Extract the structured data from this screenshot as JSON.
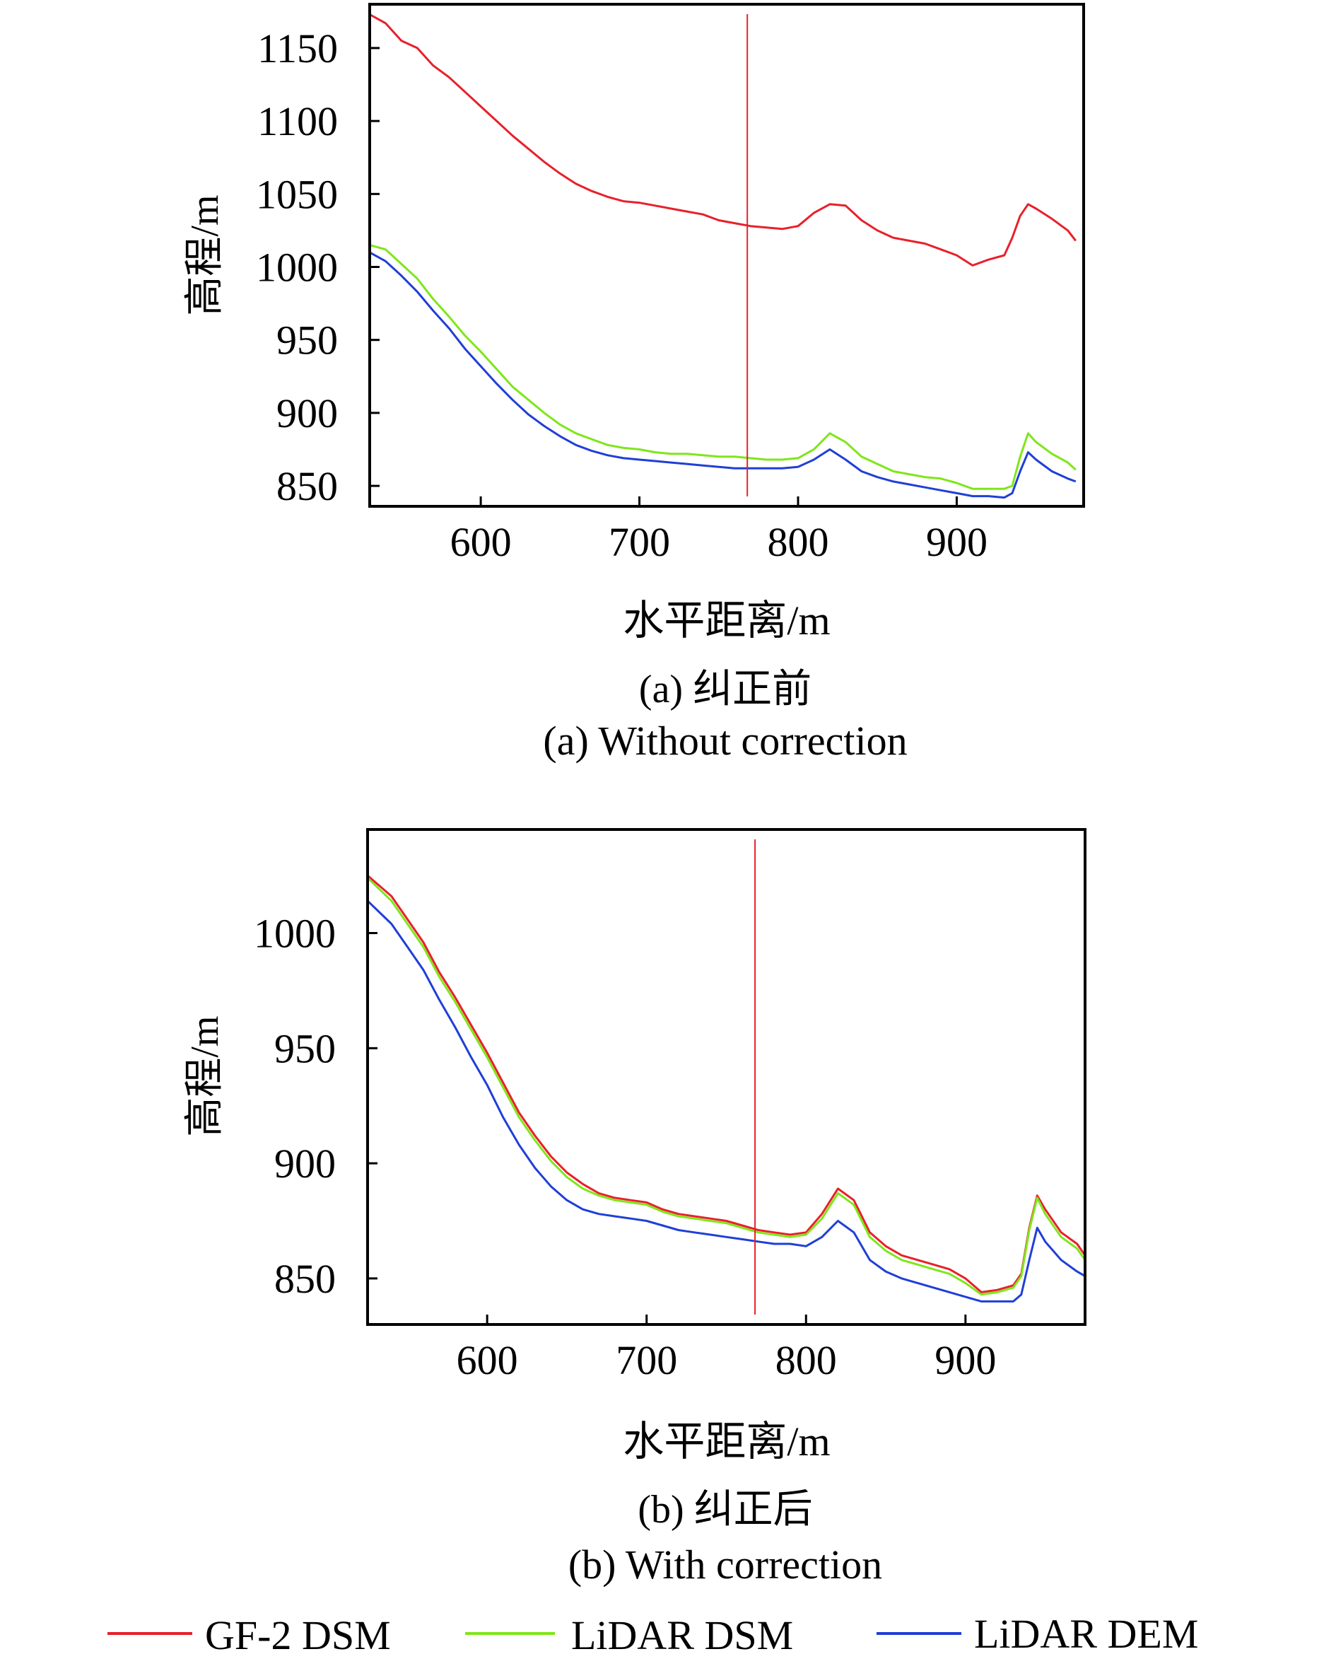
{
  "legend": {
    "placement": "bottom",
    "entries": [
      {
        "label": "GF-2 DSM",
        "color": "#e8202a"
      },
      {
        "label": "LiDAR DSM",
        "color": "#7fe61a"
      },
      {
        "label": "LiDAR DEM",
        "color": "#1f3fd6"
      }
    ]
  },
  "chart_data": [
    {
      "type": "line",
      "caption_cn": "(a) 纠正前",
      "caption_en": "(a) Without correction",
      "xlabel": "水平距离/m",
      "ylabel": "高程/m",
      "xlim": [
        530,
        980
      ],
      "ylim": [
        836,
        1180
      ],
      "xticks": [
        600,
        700,
        800,
        900
      ],
      "yticks": [
        850,
        900,
        950,
        1000,
        1050,
        1100,
        1150
      ],
      "grid": false,
      "marker_line": {
        "x": 768,
        "color": "#e8202a"
      },
      "x": [
        530,
        540,
        550,
        560,
        570,
        580,
        590,
        600,
        610,
        620,
        630,
        640,
        650,
        660,
        670,
        680,
        690,
        700,
        710,
        720,
        730,
        740,
        750,
        760,
        770,
        780,
        790,
        800,
        810,
        820,
        830,
        840,
        850,
        860,
        870,
        880,
        890,
        900,
        910,
        920,
        930,
        935,
        940,
        945,
        950,
        960,
        970,
        975
      ],
      "series": [
        {
          "name": "GF-2 DSM",
          "color": "#e8202a",
          "values": [
            1173,
            1167,
            1155,
            1150,
            1138,
            1130,
            1120,
            1110,
            1100,
            1090,
            1081,
            1072,
            1064,
            1057,
            1052,
            1048,
            1045,
            1044,
            1042,
            1040,
            1038,
            1036,
            1032,
            1030,
            1028,
            1027,
            1026,
            1028,
            1037,
            1043,
            1042,
            1032,
            1025,
            1020,
            1018,
            1016,
            1012,
            1008,
            1001,
            1005,
            1008,
            1020,
            1035,
            1043,
            1040,
            1033,
            1025,
            1018
          ]
        },
        {
          "name": "LiDAR DSM",
          "color": "#7fe61a",
          "values": [
            1015,
            1012,
            1002,
            992,
            978,
            966,
            953,
            942,
            930,
            918,
            909,
            900,
            892,
            886,
            882,
            878,
            876,
            875,
            873,
            872,
            872,
            871,
            870,
            870,
            869,
            868,
            868,
            869,
            875,
            886,
            880,
            870,
            865,
            860,
            858,
            856,
            855,
            852,
            848,
            848,
            848,
            850,
            870,
            886,
            880,
            872,
            866,
            861
          ]
        },
        {
          "name": "LiDAR DEM",
          "color": "#1f3fd6",
          "values": [
            1010,
            1004,
            994,
            983,
            970,
            958,
            944,
            932,
            920,
            909,
            899,
            891,
            884,
            878,
            874,
            871,
            869,
            868,
            867,
            866,
            865,
            864,
            863,
            862,
            862,
            862,
            862,
            863,
            868,
            875,
            868,
            860,
            856,
            853,
            851,
            849,
            847,
            845,
            843,
            843,
            842,
            845,
            860,
            873,
            868,
            860,
            855,
            853
          ]
        }
      ]
    },
    {
      "type": "line",
      "caption_cn": "(b) 纠正后",
      "caption_en": "(b) With correction",
      "xlabel": "水平距离/m",
      "ylabel": "高程/m",
      "xlim": [
        525,
        975
      ],
      "ylim": [
        830,
        1045
      ],
      "xticks": [
        600,
        700,
        800,
        900
      ],
      "yticks": [
        850,
        900,
        950,
        1000
      ],
      "grid": false,
      "marker_line": {
        "x": 768,
        "color": "#e8202a"
      },
      "x": [
        525,
        540,
        550,
        560,
        570,
        580,
        590,
        600,
        610,
        620,
        630,
        640,
        650,
        660,
        670,
        680,
        690,
        700,
        710,
        720,
        730,
        740,
        750,
        760,
        770,
        780,
        790,
        800,
        810,
        820,
        830,
        840,
        850,
        860,
        870,
        880,
        890,
        900,
        910,
        920,
        930,
        935,
        940,
        945,
        950,
        960,
        970,
        975
      ],
      "series": [
        {
          "name": "GF-2 DSM",
          "color": "#e8202a",
          "values": [
            1025,
            1016,
            1006,
            996,
            983,
            972,
            960,
            948,
            935,
            922,
            912,
            903,
            896,
            891,
            887,
            885,
            884,
            883,
            880,
            878,
            877,
            876,
            875,
            873,
            871,
            870,
            869,
            870,
            878,
            889,
            884,
            870,
            864,
            860,
            858,
            856,
            854,
            850,
            844,
            845,
            847,
            852,
            872,
            886,
            880,
            870,
            865,
            860
          ]
        },
        {
          "name": "LiDAR DSM",
          "color": "#7fe61a",
          "values": [
            1024,
            1014,
            1004,
            994,
            981,
            970,
            958,
            946,
            933,
            920,
            910,
            901,
            894,
            889,
            886,
            884,
            883,
            882,
            879,
            877,
            876,
            875,
            874,
            872,
            870,
            869,
            868,
            869,
            876,
            887,
            882,
            868,
            862,
            858,
            856,
            854,
            852,
            848,
            843,
            844,
            846,
            851,
            871,
            885,
            878,
            868,
            863,
            858
          ]
        },
        {
          "name": "LiDAR DEM",
          "color": "#1f3fd6",
          "values": [
            1014,
            1004,
            994,
            984,
            971,
            959,
            946,
            934,
            920,
            908,
            898,
            890,
            884,
            880,
            878,
            877,
            876,
            875,
            873,
            871,
            870,
            869,
            868,
            867,
            866,
            865,
            865,
            864,
            868,
            875,
            870,
            858,
            853,
            850,
            848,
            846,
            844,
            842,
            840,
            840,
            840,
            843,
            858,
            872,
            866,
            858,
            853,
            851
          ]
        }
      ]
    }
  ]
}
